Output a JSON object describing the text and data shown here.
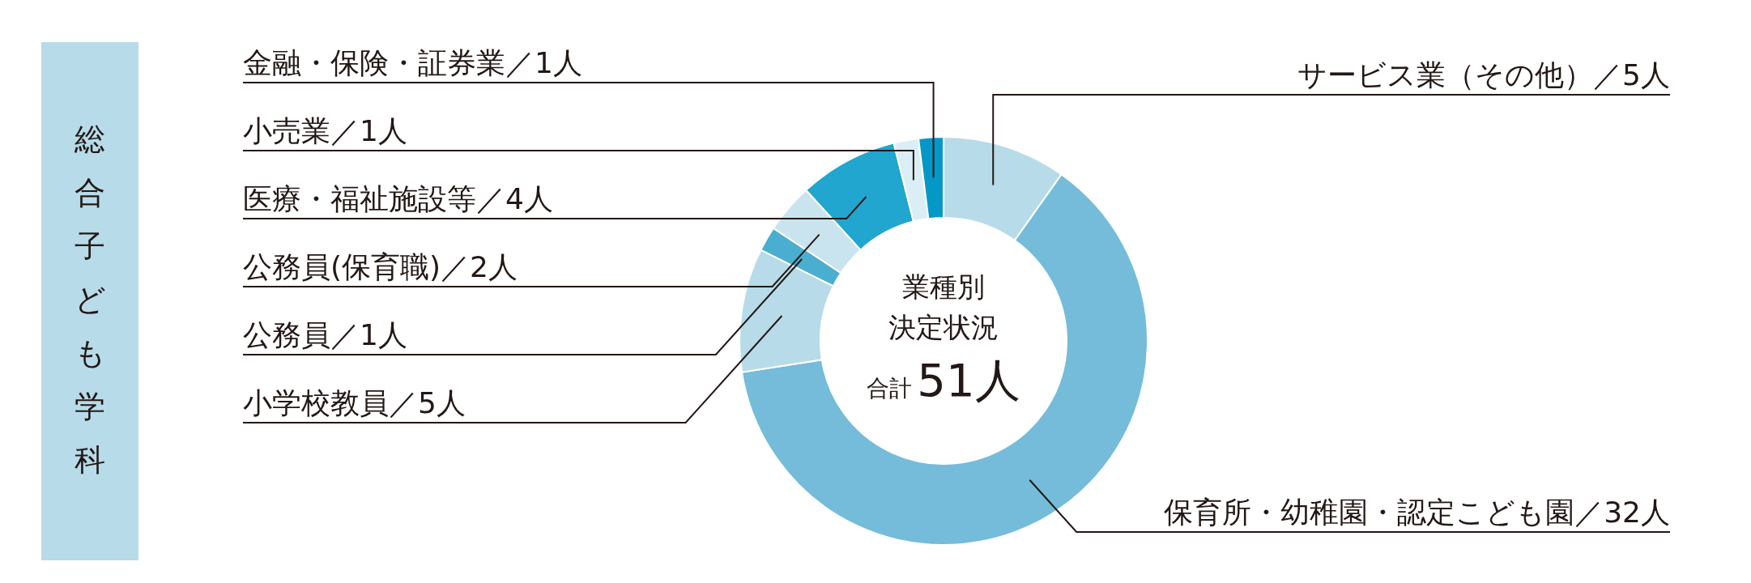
{
  "chart_data": {
    "type": "donut",
    "title": "総合子ども学科",
    "categories": [
      "サービス業（その他）／5人",
      "保育所・幼稚園・認定こども園／32人",
      "小学校教員／5人",
      "公務員／1人",
      "公務員(保育職)／2人",
      "医療・福祉施設等／4人",
      "小売業／1人",
      "金融・保険・証券業／1人"
    ],
    "values": [
      5,
      32,
      5,
      1,
      2,
      4,
      1,
      1
    ],
    "colors": [
      "#b7dbe9",
      "#74bcd9",
      "#b7dbe9",
      "#4aaed0",
      "#cae4ef",
      "#20a6cf",
      "#dceef5",
      "#0598c6"
    ],
    "annotations": [
      "業種別",
      "決定状況",
      "合計",
      "51人"
    ]
  }
}
